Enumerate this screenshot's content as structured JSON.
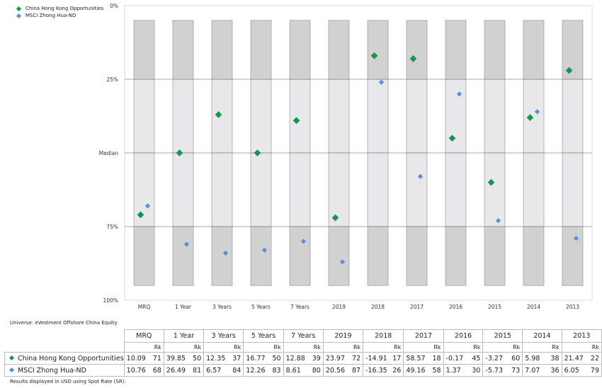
{
  "legend": {
    "fund": "China Hong Kong Opportunities",
    "index": "MSCI Zhong Hua-ND"
  },
  "colors": {
    "fund": "#0d9a4c",
    "index": "#5b8ee6",
    "outer_band": "#d1d1d1",
    "inner_band": "#e8e8ea",
    "line": "#8a8a8a"
  },
  "universe": "Universe: eVestment Offshore China Equity",
  "footnote": "Results displayed in USD using Spot Rate (SR).",
  "table": {
    "rk_label": "Rk",
    "rows": [
      {
        "name": "China Hong Kong Opportunities",
        "cells": [
          {
            "v": "10.09",
            "r": "71"
          },
          {
            "v": "39.85",
            "r": "50"
          },
          {
            "v": "12.35",
            "r": "37"
          },
          {
            "v": "16.77",
            "r": "50"
          },
          {
            "v": "12.88",
            "r": "39"
          },
          {
            "v": "23.97",
            "r": "72"
          },
          {
            "v": "-14.91",
            "r": "17"
          },
          {
            "v": "58.57",
            "r": "18"
          },
          {
            "v": "-0.17",
            "r": "45"
          },
          {
            "v": "-3.27",
            "r": "60"
          },
          {
            "v": "5.98",
            "r": "38"
          },
          {
            "v": "21.47",
            "r": "22"
          }
        ]
      },
      {
        "name": "MSCI Zhong Hua-ND",
        "cells": [
          {
            "v": "10.76",
            "r": "68"
          },
          {
            "v": "26.49",
            "r": "81"
          },
          {
            "v": "6.57",
            "r": "84"
          },
          {
            "v": "12.26",
            "r": "83"
          },
          {
            "v": "8.61",
            "r": "80"
          },
          {
            "v": "20.56",
            "r": "87"
          },
          {
            "v": "-16.35",
            "r": "26"
          },
          {
            "v": "49.16",
            "r": "58"
          },
          {
            "v": "1.37",
            "r": "30"
          },
          {
            "v": "-5.73",
            "r": "73"
          },
          {
            "v": "7.07",
            "r": "36"
          },
          {
            "v": "6.05",
            "r": "79"
          }
        ]
      }
    ]
  },
  "chart_data": {
    "type": "scatter",
    "categories": [
      "MRQ",
      "1 Year",
      "3 Years",
      "5 Years",
      "7 Years",
      "2019",
      "2018",
      "2017",
      "2016",
      "2015",
      "2014",
      "2013"
    ],
    "y_ticks": [
      "0%",
      "25%",
      "Median",
      "75%",
      "100%"
    ],
    "ylim": [
      0,
      100
    ],
    "y_inverted": true,
    "band_range_percentiles": [
      5,
      95
    ],
    "series": [
      {
        "name": "China Hong Kong Opportunities",
        "marker": "diamond",
        "values": [
          71,
          50,
          37,
          50,
          39,
          72,
          17,
          18,
          45,
          60,
          38,
          22
        ]
      },
      {
        "name": "MSCI Zhong Hua-ND",
        "marker": "diamond",
        "values": [
          68,
          81,
          84,
          83,
          80,
          87,
          26,
          58,
          30,
          73,
          36,
          79
        ]
      }
    ]
  }
}
